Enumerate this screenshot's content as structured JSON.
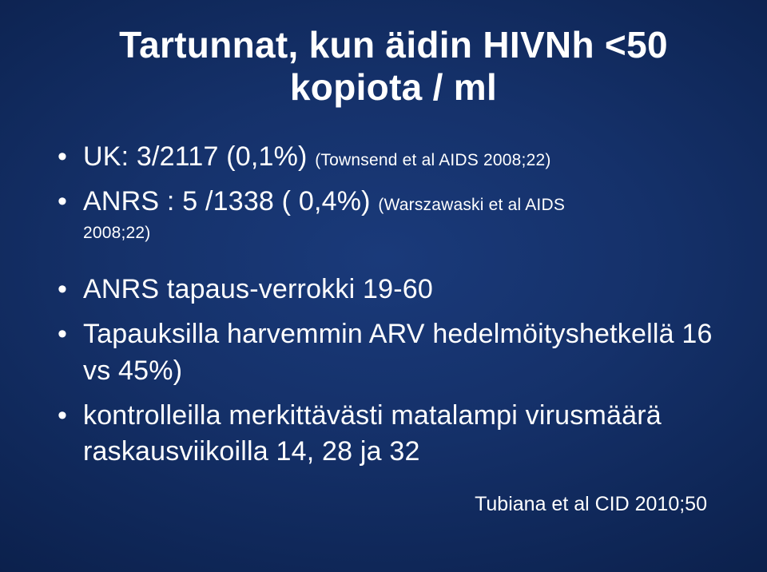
{
  "slide": {
    "background_gradient": {
      "type": "radial",
      "stops": [
        "#1a3a7a",
        "#15316a",
        "#0f2758",
        "#0a1d46",
        "#051438",
        "#020a25"
      ]
    },
    "text_color": "#ffffff",
    "title_fontsize": 46,
    "bullet_fontsize": 34,
    "cite_fontsize": 21,
    "footer_fontsize": 25,
    "title_line1": "Tartunnat, kun äidin HIVNh <50",
    "title_line2": "kopiota / ml",
    "bullet1_main": "UK: 3/2117 (0,1%) ",
    "bullet1_cite": "(Townsend et al AIDS 2008;22)",
    "bullet2_main": "ANRS : 5 /1338 ( 0,4%) ",
    "bullet2_cite_inline": "(Warszawaski et al AIDS",
    "bullet2_cite_line2": "2008;22)",
    "bullet3": "ANRS tapaus-verrokki 19-60",
    "bullet4_line1": "Tapauksilla harvemmin ARV hedelmöityshetkellä 16",
    "bullet4_line2": "vs 45%)",
    "bullet5_line1": "kontrolleilla merkittävästi matalampi virusmäärä",
    "bullet5_line2": "raskausviikoilla 14, 28 ja 32",
    "footer_cite": "Tubiana et al CID 2010;50"
  }
}
